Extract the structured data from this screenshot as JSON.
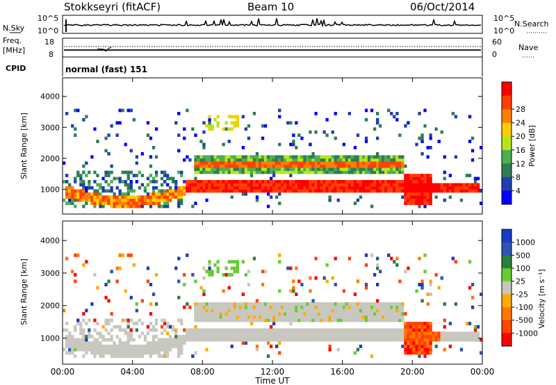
{
  "header": {
    "station": "Stokkseyri (fitACF)",
    "beam": "Beam 10",
    "date": "06/Oct/2014"
  },
  "noise_panel": {
    "left_label": "N.Sky",
    "left_top_tick": "10^5",
    "left_bottom_tick": "10^0",
    "right_label": "N.Search",
    "right_top_tick": "10^5",
    "right_bottom_tick": "10^0"
  },
  "freq_panel": {
    "left_label_1": "Freq.",
    "left_label_2": "[MHz]",
    "left_top_tick": "18",
    "left_bottom_tick": "8",
    "right_label": "Nave",
    "right_top_tick": "60",
    "right_bottom_tick": "0"
  },
  "cpid_panel": {
    "label": "CPID",
    "program": "normal (fast) 151"
  },
  "colors": {
    "power_scale": [
      "#0000ff",
      "#1f3fb0",
      "#2e7d55",
      "#4caf50",
      "#b5e61d",
      "#ffcc00",
      "#ff8000",
      "#ff4000",
      "#ff0000"
    ],
    "velocity_scale": [
      "#1a3ac8",
      "#2a55b0",
      "#2e7d3e",
      "#66cc33",
      "#c8c8c0",
      "#ffaa00",
      "#ff7700",
      "#ff4400",
      "#ff0000"
    ]
  },
  "chart_data": [
    {
      "type": "heatmap",
      "name": "power",
      "ylabel": "Slant Range [km]",
      "ylim": [
        200,
        4600
      ],
      "xlim_hours": [
        0,
        24
      ],
      "yticks": [
        "1000",
        "2000",
        "3000",
        "4000"
      ],
      "colorbar_label": "Power [dB]",
      "colorbar_ticks": [
        "4",
        "8",
        "12",
        "16",
        "20",
        "24",
        "28"
      ],
      "colorbar_range": [
        0,
        32
      ]
    },
    {
      "type": "heatmap",
      "name": "velocity",
      "ylabel": "Slant Range [km]",
      "ylim": [
        200,
        4600
      ],
      "xlim_hours": [
        0,
        24
      ],
      "yticks": [
        "1000",
        "2000",
        "3000",
        "4000"
      ],
      "colorbar_label": "Velocity [m s⁻¹]",
      "colorbar_ticks": [
        "1000",
        "500",
        "100",
        "25",
        "-25",
        "-100",
        "-500",
        "-1000"
      ]
    }
  ],
  "x_axis": {
    "ticks": [
      "00:00",
      "04:00",
      "08:00",
      "12:00",
      "16:00",
      "20:00",
      "00:00"
    ],
    "label": "Time UT"
  }
}
